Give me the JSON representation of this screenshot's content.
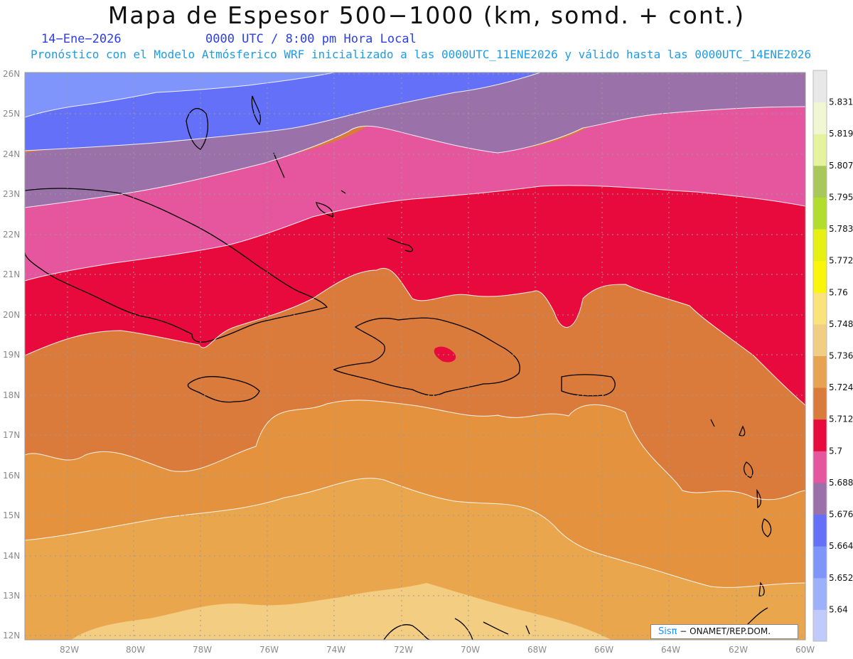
{
  "header": {
    "title": "Mapa de Espesor 500−1000 (km, somd. + cont.)",
    "date": "14−Ene−2026",
    "time": "0000 UTC / 8:00 pm Hora Local",
    "model_info": "Pronóstico con el Modelo Atmósferico WRF inicializado a las 0000UTC_11ENE2026 y válido hasta las  0000UTC_14ENE2026",
    "color_date": "#2b3df0",
    "color_model": "#1e9be8"
  },
  "map": {
    "background": "#e08a3c",
    "lat_labels": [
      "26N",
      "25N",
      "24N",
      "23N",
      "22N",
      "21N",
      "20N",
      "19N",
      "18N",
      "17N",
      "16N",
      "15N",
      "14N",
      "13N",
      "12N"
    ],
    "lon_labels": [
      "82W",
      "80W",
      "78W",
      "76W",
      "74W",
      "72W",
      "70W",
      "68W",
      "66W",
      "64W",
      "62W",
      "60W"
    ]
  },
  "colorbar": {
    "levels": [
      "5.64",
      "5.652",
      "5.664",
      "5.676",
      "5.688",
      "5.7",
      "5.712",
      "5.724",
      "5.736",
      "5.748",
      "5.76",
      "5.772",
      "5.783",
      "5.795",
      "5.807",
      "5.819",
      "5.831"
    ],
    "colors": [
      "#c0cbfb",
      "#9db0fc",
      "#7f95fc",
      "#6570f8",
      "#9a72a9",
      "#e5569e",
      "#e80a3c",
      "#db7b3b",
      "#e8a350",
      "#f0cf84",
      "#fbe37c",
      "#fbf50a",
      "#e6f011",
      "#b2dd2c",
      "#a8c95a",
      "#e6f39d",
      "#f1f7d2",
      "#e8e8e8"
    ]
  },
  "credit": {
    "sis": "Sisπ",
    "text": " − ONAMET/REP.DOM."
  }
}
